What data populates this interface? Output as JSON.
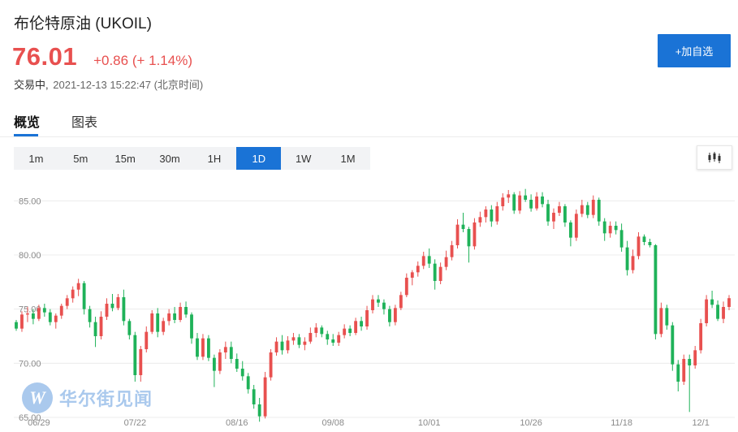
{
  "header": {
    "title": "布伦特原油 (UKOIL)",
    "price": "76.01",
    "change": "+0.86 (+ 1.14%)",
    "status_label": "交易中,",
    "timestamp": "2021-12-13 15:22:47 (北京时间)",
    "watchlist_button": "+加自选"
  },
  "tabs": [
    {
      "label": "概览",
      "active": true
    },
    {
      "label": "图表",
      "active": false
    }
  ],
  "intervals": [
    {
      "label": "1m",
      "active": false
    },
    {
      "label": "5m",
      "active": false
    },
    {
      "label": "15m",
      "active": false
    },
    {
      "label": "30m",
      "active": false
    },
    {
      "label": "1H",
      "active": false
    },
    {
      "label": "1D",
      "active": true
    },
    {
      "label": "1W",
      "active": false
    },
    {
      "label": "1M",
      "active": false
    }
  ],
  "chart_type_icon": "candlestick-icon",
  "watermark": {
    "text": "华尔街见闻",
    "logo_letter": "W"
  },
  "colors": {
    "up": "#e8504f",
    "down": "#1fb259",
    "accent": "#1a73d6",
    "grid": "#ececec"
  },
  "chart_data": {
    "type": "candlestick",
    "yticks": [
      "65.00",
      "70.00",
      "75.00",
      "80.00",
      "85.00"
    ],
    "ylim": [
      65,
      86.6
    ],
    "xtick_labels": [
      {
        "label": "06/29",
        "i": 4
      },
      {
        "label": "07/22",
        "i": 21
      },
      {
        "label": "08/16",
        "i": 39
      },
      {
        "label": "09/08",
        "i": 56
      },
      {
        "label": "10/01",
        "i": 73
      },
      {
        "label": "10/26",
        "i": 91
      },
      {
        "label": "11/18",
        "i": 107
      },
      {
        "label": "12/1",
        "i": 121
      }
    ],
    "candles": [
      [
        73.8,
        74.0,
        73.0,
        73.2
      ],
      [
        73.2,
        74.8,
        72.9,
        74.5
      ],
      [
        74.5,
        75.2,
        73.8,
        74.6
      ],
      [
        74.6,
        75.0,
        73.6,
        74.1
      ],
      [
        74.1,
        75.4,
        73.9,
        75.1
      ],
      [
        75.1,
        75.5,
        74.3,
        74.7
      ],
      [
        74.7,
        75.0,
        73.5,
        73.8
      ],
      [
        73.8,
        74.6,
        73.2,
        74.4
      ],
      [
        74.4,
        75.5,
        74.1,
        75.3
      ],
      [
        75.3,
        76.3,
        75.0,
        76.0
      ],
      [
        76.0,
        77.1,
        75.6,
        76.8
      ],
      [
        76.8,
        77.8,
        76.2,
        77.4
      ],
      [
        77.4,
        77.6,
        74.5,
        75.0
      ],
      [
        75.0,
        75.3,
        73.3,
        73.8
      ],
      [
        73.8,
        74.3,
        71.5,
        72.5
      ],
      [
        72.5,
        74.8,
        72.2,
        74.3
      ],
      [
        74.3,
        76.0,
        74.0,
        75.5
      ],
      [
        75.5,
        76.4,
        74.8,
        75.1
      ],
      [
        75.1,
        76.4,
        74.9,
        76.1
      ],
      [
        76.1,
        76.8,
        73.5,
        73.9
      ],
      [
        73.9,
        74.1,
        72.2,
        72.6
      ],
      [
        72.6,
        72.9,
        68.3,
        68.9
      ],
      [
        68.9,
        71.6,
        68.3,
        71.3
      ],
      [
        71.3,
        73.4,
        71.0,
        72.9
      ],
      [
        72.9,
        74.9,
        72.7,
        74.6
      ],
      [
        74.6,
        75.1,
        72.4,
        72.9
      ],
      [
        72.9,
        74.2,
        72.6,
        73.9
      ],
      [
        73.9,
        75.0,
        73.5,
        74.6
      ],
      [
        74.6,
        75.2,
        73.7,
        74.0
      ],
      [
        74.0,
        75.6,
        73.8,
        75.2
      ],
      [
        75.2,
        75.7,
        74.2,
        74.5
      ],
      [
        74.5,
        74.7,
        71.8,
        72.3
      ],
      [
        72.3,
        72.8,
        70.3,
        70.6
      ],
      [
        70.6,
        72.7,
        70.3,
        72.3
      ],
      [
        72.3,
        72.6,
        70.2,
        70.5
      ],
      [
        70.5,
        70.8,
        67.8,
        69.3
      ],
      [
        69.3,
        71.3,
        69.0,
        71.0
      ],
      [
        71.0,
        72.0,
        70.4,
        71.5
      ],
      [
        71.5,
        72.0,
        70.0,
        70.4
      ],
      [
        70.4,
        70.9,
        69.2,
        69.5
      ],
      [
        69.5,
        70.2,
        68.4,
        68.8
      ],
      [
        68.8,
        69.1,
        67.2,
        67.6
      ],
      [
        67.6,
        68.0,
        65.8,
        66.2
      ],
      [
        66.2,
        66.8,
        64.6,
        65.1
      ],
      [
        65.1,
        69.2,
        64.9,
        68.7
      ],
      [
        68.7,
        71.3,
        68.4,
        71.0
      ],
      [
        71.0,
        72.4,
        70.7,
        72.0
      ],
      [
        72.0,
        72.6,
        70.8,
        71.2
      ],
      [
        71.2,
        72.5,
        70.9,
        72.1
      ],
      [
        72.1,
        72.8,
        71.7,
        72.4
      ],
      [
        72.4,
        72.7,
        71.4,
        71.7
      ],
      [
        71.7,
        72.4,
        71.2,
        72.0
      ],
      [
        72.0,
        73.3,
        71.8,
        72.8
      ],
      [
        72.8,
        73.7,
        72.4,
        73.3
      ],
      [
        73.3,
        73.5,
        72.4,
        72.7
      ],
      [
        72.7,
        73.0,
        71.7,
        72.2
      ],
      [
        72.2,
        72.7,
        71.6,
        71.9
      ],
      [
        71.9,
        72.9,
        71.6,
        72.6
      ],
      [
        72.6,
        73.6,
        72.3,
        73.2
      ],
      [
        73.2,
        73.5,
        72.5,
        72.8
      ],
      [
        72.8,
        74.2,
        72.6,
        73.9
      ],
      [
        73.9,
        74.3,
        73.0,
        73.4
      ],
      [
        73.4,
        75.3,
        73.1,
        74.9
      ],
      [
        74.9,
        76.3,
        74.6,
        75.9
      ],
      [
        75.9,
        76.3,
        75.2,
        75.6
      ],
      [
        75.6,
        75.9,
        74.5,
        75.0
      ],
      [
        75.0,
        75.3,
        73.4,
        73.8
      ],
      [
        73.8,
        75.4,
        73.5,
        75.1
      ],
      [
        75.1,
        76.6,
        74.9,
        76.3
      ],
      [
        76.3,
        78.3,
        76.1,
        77.9
      ],
      [
        77.9,
        78.6,
        77.2,
        78.4
      ],
      [
        78.4,
        79.4,
        78.0,
        79.0
      ],
      [
        79.0,
        80.3,
        78.7,
        79.9
      ],
      [
        79.9,
        80.6,
        78.8,
        79.2
      ],
      [
        79.2,
        79.6,
        76.8,
        77.6
      ],
      [
        77.6,
        79.3,
        77.3,
        78.9
      ],
      [
        78.9,
        80.4,
        78.6,
        79.8
      ],
      [
        79.8,
        81.3,
        79.5,
        80.9
      ],
      [
        80.9,
        83.3,
        80.6,
        82.8
      ],
      [
        82.8,
        83.9,
        82.1,
        82.4
      ],
      [
        82.4,
        82.6,
        79.3,
        80.8
      ],
      [
        80.8,
        83.4,
        80.5,
        83.0
      ],
      [
        83.0,
        84.0,
        82.6,
        83.5
      ],
      [
        83.5,
        84.5,
        83.0,
        84.2
      ],
      [
        84.2,
        84.6,
        82.6,
        83.1
      ],
      [
        83.1,
        84.9,
        82.8,
        84.5
      ],
      [
        84.5,
        85.7,
        84.1,
        85.3
      ],
      [
        85.3,
        86.0,
        84.8,
        85.6
      ],
      [
        85.6,
        85.8,
        83.8,
        84.1
      ],
      [
        84.1,
        85.9,
        83.8,
        85.5
      ],
      [
        85.5,
        86.1,
        84.9,
        85.1
      ],
      [
        85.1,
        85.6,
        84.0,
        84.3
      ],
      [
        84.3,
        85.8,
        84.1,
        85.4
      ],
      [
        85.4,
        85.8,
        84.4,
        84.7
      ],
      [
        84.7,
        85.1,
        82.7,
        83.1
      ],
      [
        83.1,
        84.3,
        82.4,
        83.9
      ],
      [
        83.9,
        84.9,
        83.6,
        84.5
      ],
      [
        84.5,
        84.7,
        82.6,
        83.0
      ],
      [
        83.0,
        83.2,
        80.8,
        81.6
      ],
      [
        81.6,
        84.2,
        81.3,
        83.8
      ],
      [
        83.8,
        85.1,
        83.5,
        84.6
      ],
      [
        84.6,
        84.9,
        83.4,
        83.7
      ],
      [
        83.7,
        85.5,
        83.4,
        85.1
      ],
      [
        85.1,
        85.3,
        82.7,
        83.1
      ],
      [
        83.1,
        83.4,
        81.3,
        82.0
      ],
      [
        82.0,
        83.1,
        81.6,
        82.7
      ],
      [
        82.7,
        83.1,
        81.9,
        82.3
      ],
      [
        82.3,
        82.9,
        80.3,
        80.7
      ],
      [
        80.7,
        81.3,
        78.1,
        78.6
      ],
      [
        78.6,
        80.5,
        78.3,
        79.9
      ],
      [
        79.9,
        82.1,
        79.6,
        81.7
      ],
      [
        81.7,
        81.9,
        80.9,
        81.2
      ],
      [
        81.2,
        81.5,
        80.7,
        80.9
      ],
      [
        80.9,
        81.0,
        72.2,
        72.7
      ],
      [
        72.7,
        75.6,
        72.4,
        75.1
      ],
      [
        75.1,
        75.4,
        73.1,
        73.5
      ],
      [
        73.5,
        73.8,
        69.3,
        69.9
      ],
      [
        69.9,
        70.3,
        67.4,
        68.3
      ],
      [
        68.3,
        70.8,
        68.0,
        70.4
      ],
      [
        70.4,
        70.8,
        65.5,
        69.8
      ],
      [
        69.8,
        71.6,
        69.5,
        71.2
      ],
      [
        71.2,
        74.1,
        70.9,
        73.7
      ],
      [
        73.7,
        76.3,
        73.4,
        75.9
      ],
      [
        75.9,
        76.7,
        75.1,
        75.4
      ],
      [
        75.4,
        75.8,
        73.9,
        74.1
      ],
      [
        74.1,
        75.7,
        73.7,
        75.2
      ],
      [
        75.2,
        76.3,
        74.9,
        76.01
      ]
    ]
  }
}
